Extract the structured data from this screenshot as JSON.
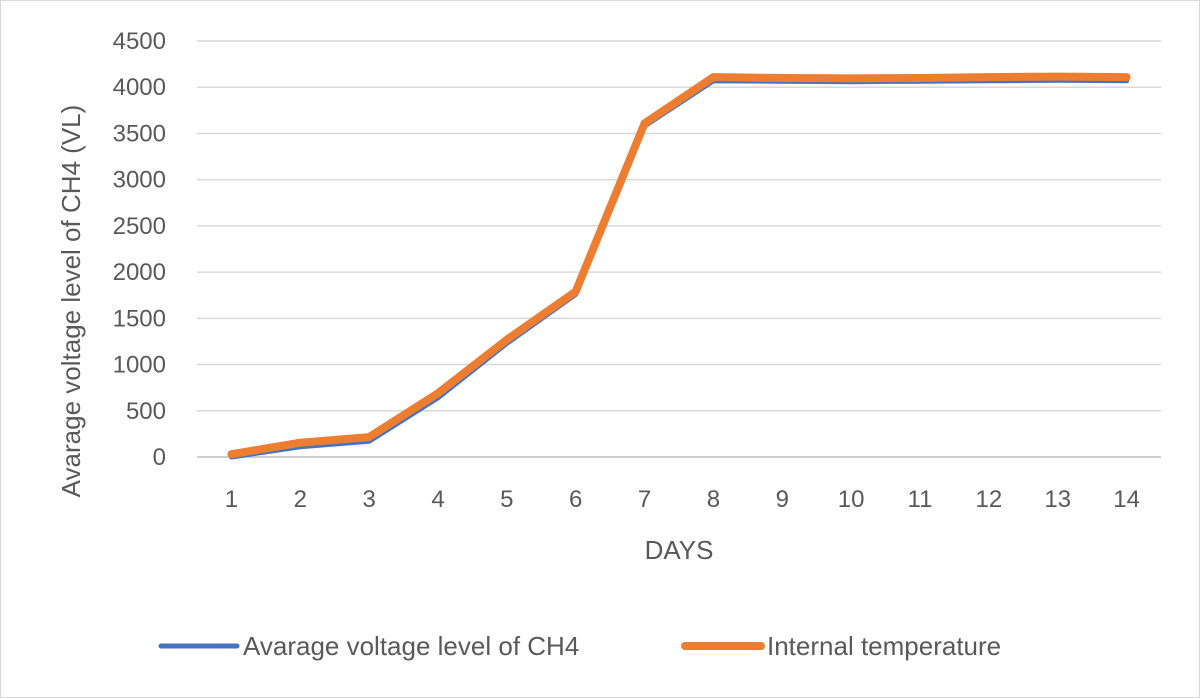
{
  "chart_data": {
    "type": "line",
    "title": "",
    "xlabel": "DAYS",
    "ylabel": "Avarage voltage level of CH4 (VL)",
    "categories": [
      "1",
      "2",
      "3",
      "4",
      "5",
      "6",
      "7",
      "8",
      "9",
      "10",
      "11",
      "12",
      "13",
      "14"
    ],
    "ylim": [
      0,
      4500
    ],
    "yticks": [
      0,
      500,
      1000,
      1500,
      2000,
      2500,
      3000,
      3500,
      4000,
      4500
    ],
    "grid": true,
    "legend_position": "bottom",
    "series": [
      {
        "name": "Avarage voltage level of CH4",
        "color": "#4472c4",
        "values": [
          0,
          110,
          170,
          640,
          1230,
          1760,
          3580,
          4070,
          4065,
          4060,
          4065,
          4070,
          4075,
          4070
        ]
      },
      {
        "name": "Internal temperature",
        "color": "#ed7d31",
        "values": [
          30,
          155,
          215,
          690,
          1270,
          1790,
          3610,
          4110,
          4100,
          4095,
          4100,
          4110,
          4115,
          4110
        ]
      }
    ]
  }
}
